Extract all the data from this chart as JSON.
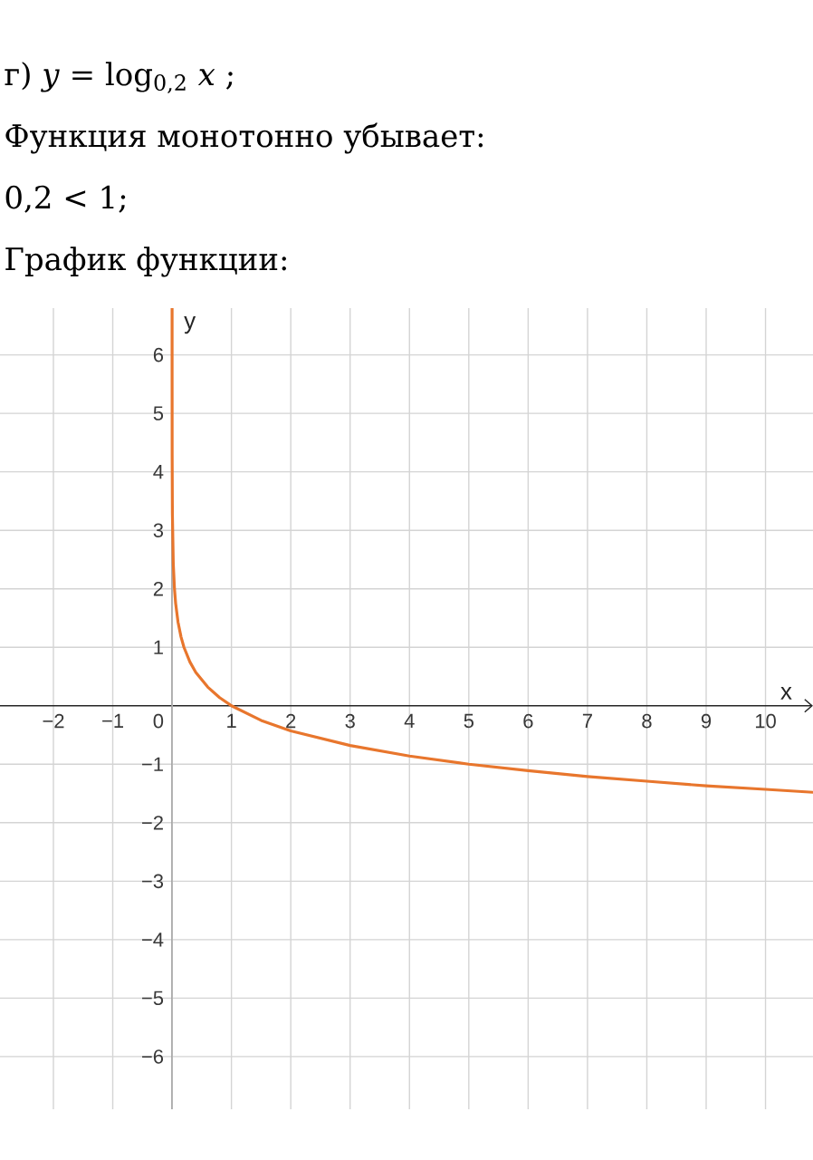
{
  "chart_data": {
    "type": "line",
    "title": "г) *y* = log$_{0,2}$ *x* ;",
    "annotations": [
      "Функция монотонно убывает:",
      "0,2 < 1;",
      "График функции:"
    ],
    "xlabel": "x",
    "ylabel": "y",
    "x": [
      2e-05,
      0.0001,
      0.001,
      0.005,
      0.02,
      0.04,
      0.06,
      0.1,
      0.15,
      0.2,
      0.3,
      0.4,
      0.6,
      0.8,
      1,
      1.5,
      2,
      3,
      4,
      5,
      6,
      7,
      8,
      9,
      10,
      10.8
    ],
    "series": [
      {
        "color": "#e8762d",
        "values": [
          6.8,
          5.72,
          4.29,
          3.29,
          2.43,
          2.0,
          1.75,
          1.43,
          1.18,
          1.0,
          0.75,
          0.57,
          0.32,
          0.14,
          0,
          -0.25,
          -0.43,
          -0.68,
          -0.86,
          -1.0,
          -1.11,
          -1.21,
          -1.29,
          -1.37,
          -1.43,
          -1.48
        ]
      }
    ],
    "xlim": [
      -2.9,
      10.8
    ],
    "ylim": [
      -6.9,
      6.8
    ],
    "xticks": [
      {
        "value": -2,
        "label": "−2"
      },
      {
        "value": -1,
        "label": "−1"
      },
      0,
      1,
      2,
      3,
      4,
      5,
      6,
      7,
      8,
      9,
      10
    ],
    "yticks": [
      {
        "value": -6,
        "label": "−6"
      },
      {
        "value": -5,
        "label": "−5"
      },
      {
        "value": -4,
        "label": "−4"
      },
      {
        "value": -3,
        "label": "−3"
      },
      {
        "value": -2,
        "label": "−2"
      },
      {
        "value": -1,
        "label": "−1"
      },
      1,
      2,
      3,
      4,
      5,
      6
    ],
    "grid": true,
    "line_style": "solid"
  }
}
